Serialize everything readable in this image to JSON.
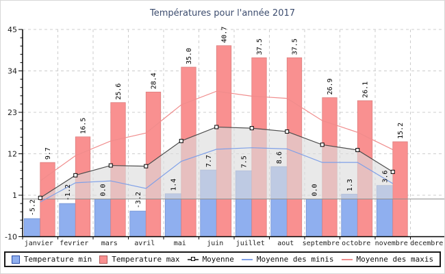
{
  "title": "Températures pour l'année 2017",
  "legend": {
    "temperature_min": "Temperature min",
    "temperature_max": "Temperature max",
    "moyenne": "Moyenne",
    "moyenne_des_minis": "Moyenne des minis",
    "moyenne_des_maxis": "Moyenne des maxis"
  },
  "colors": {
    "bar_min_fill": "#8fafef",
    "bar_min_border": "#6f8fd0",
    "bar_max_fill": "#f99090",
    "bar_max_border": "#d97c7c",
    "moyenne_line": "#4d4d4d",
    "moyenne_area": "#dcdcdc",
    "minis_line": "#7fa0e8",
    "maxis_line": "#f08c8c",
    "grid": "#cccccc",
    "zero_line": "#909090",
    "axis": "#000000",
    "title": "#3c4c6e",
    "tick_label": "#1a1a1a",
    "bar_label": "#000000"
  },
  "chart_data": {
    "type": "bar",
    "subtype": "grouped bars with overlaid average lines and area fill under the mean line",
    "title": "Températures pour l'année 2017",
    "xlabel": "",
    "ylabel": "",
    "ylim": [
      -10,
      45
    ],
    "yticks": [
      45,
      34,
      23,
      12,
      1,
      -10
    ],
    "y_minor_step": 2.2,
    "grid": "dashed horizontal and vertical light-gray gridlines",
    "legend_position": "bottom",
    "categories": [
      "janvier",
      "fevrier",
      "mars",
      "avril",
      "mai",
      "juin",
      "juillet",
      "aout",
      "septembre",
      "octobre",
      "novembre",
      "decembre"
    ],
    "series": [
      {
        "name": "Temperature min",
        "type": "bar",
        "color": "#8fafef",
        "values": [
          -5.2,
          -1.2,
          0.0,
          -3.2,
          1.4,
          7.7,
          7.5,
          8.6,
          0.0,
          1.3,
          3.6,
          null
        ]
      },
      {
        "name": "Temperature max",
        "type": "bar",
        "color": "#f99090",
        "values": [
          9.7,
          16.5,
          25.6,
          28.4,
          35.0,
          40.7,
          37.5,
          37.5,
          26.9,
          26.1,
          15.2,
          null
        ]
      },
      {
        "name": "Moyenne",
        "type": "line",
        "marker": "square",
        "area_fill_to_zero": true,
        "color": "#4d4d4d",
        "values": [
          0.3,
          6.3,
          8.9,
          8.7,
          15.4,
          19.1,
          18.8,
          17.9,
          14.4,
          13.0,
          7.2,
          null
        ]
      },
      {
        "name": "Moyenne des minis",
        "type": "line",
        "color": "#7fa0e8",
        "values": [
          -0.8,
          4.3,
          4.8,
          2.8,
          10.0,
          13.2,
          13.6,
          13.3,
          9.7,
          9.7,
          4.1,
          null
        ]
      },
      {
        "name": "Moyenne des maxis",
        "type": "line",
        "color": "#f08c8c",
        "values": [
          4.8,
          11.5,
          15.4,
          17.5,
          25.0,
          28.6,
          27.3,
          26.7,
          20.8,
          17.7,
          13.1,
          null
        ]
      }
    ]
  }
}
